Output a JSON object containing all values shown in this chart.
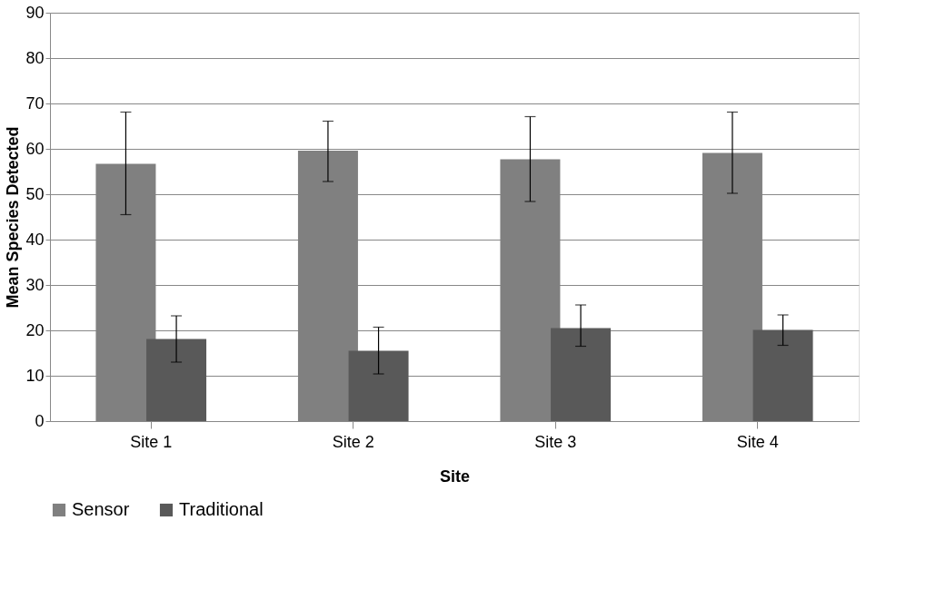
{
  "chart_data": {
    "type": "bar",
    "xlabel": "Site",
    "ylabel": "Mean Species Detected",
    "categories": [
      "Site 1",
      "Site 2",
      "Site 3",
      "Site 4"
    ],
    "series": [
      {
        "name": "Sensor",
        "color": "#808080",
        "values": [
          56.7,
          59.6,
          57.7,
          59.1
        ],
        "errors": [
          [
            45.5,
            68.1
          ],
          [
            52.8,
            66.1
          ],
          [
            48.4,
            67.1
          ],
          [
            50.2,
            68.1
          ]
        ]
      },
      {
        "name": "Traditional",
        "color": "#595959",
        "values": [
          18.1,
          15.5,
          20.5,
          20.1
        ],
        "errors": [
          [
            13.0,
            23.2
          ],
          [
            10.4,
            20.7
          ],
          [
            16.5,
            25.6
          ],
          [
            16.7,
            23.4
          ]
        ]
      }
    ],
    "ylim": [
      0,
      90
    ],
    "yticks": [
      0,
      10,
      20,
      30,
      40,
      50,
      60,
      70,
      80,
      90
    ],
    "grid": "y",
    "legend": "bottom"
  }
}
